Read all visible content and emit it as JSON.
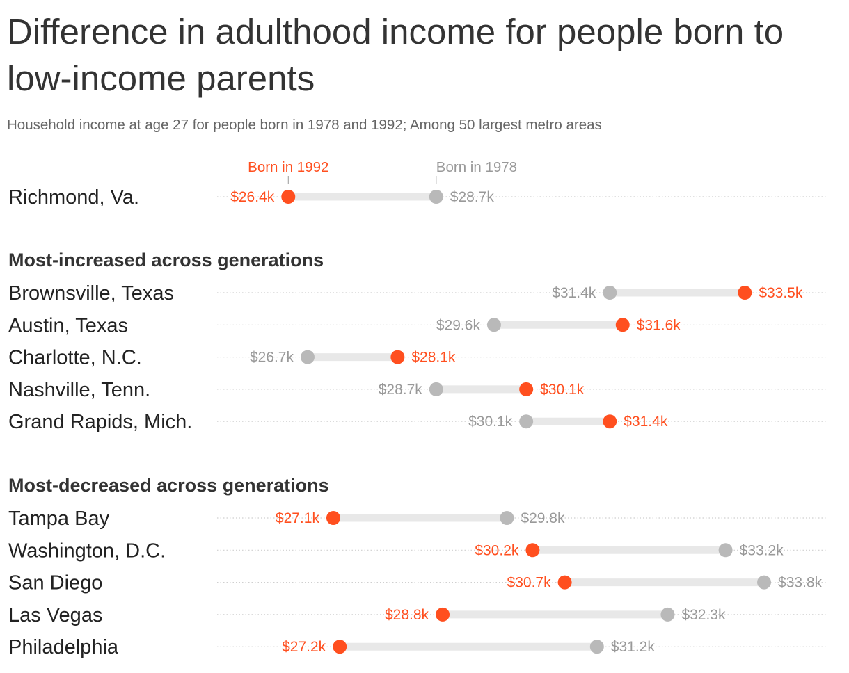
{
  "title": "Difference in adulthood income for people born to low-income parents",
  "subtitle": "Household income at age 27 for people born in 1978 and 1992; Among 50 largest metro areas",
  "colors": {
    "born_1992": "#ff4f1f",
    "born_1978": "#b9b9b9",
    "range_bar": "#e8e8e8",
    "dotted_line": "#cfcfcf"
  },
  "chart_data": {
    "type": "dumbbell",
    "units": "thousands of USD",
    "legend": {
      "born_1992": "Born in 1992",
      "born_1978": "Born in 1978"
    },
    "highlight": {
      "label": "Richmond, Va.",
      "y1978": 28.7,
      "y1992": 26.4,
      "l1978": "$28.7k",
      "l1992": "$26.4k"
    },
    "groups": [
      {
        "label": "Most-increased across generations",
        "rows": [
          {
            "label": "Brownsville, Texas",
            "y1978": 31.4,
            "y1992": 33.5,
            "l1978": "$31.4k",
            "l1992": "$33.5k"
          },
          {
            "label": "Austin, Texas",
            "y1978": 29.6,
            "y1992": 31.6,
            "l1978": "$29.6k",
            "l1992": "$31.6k"
          },
          {
            "label": "Charlotte, N.C.",
            "y1978": 26.7,
            "y1992": 28.1,
            "l1978": "$26.7k",
            "l1992": "$28.1k"
          },
          {
            "label": "Nashville, Tenn.",
            "y1978": 28.7,
            "y1992": 30.1,
            "l1978": "$28.7k",
            "l1992": "$30.1k"
          },
          {
            "label": "Grand Rapids, Mich.",
            "y1978": 30.1,
            "y1992": 31.4,
            "l1978": "$30.1k",
            "l1992": "$31.4k"
          }
        ]
      },
      {
        "label": "Most-decreased across generations",
        "rows": [
          {
            "label": "Tampa Bay",
            "y1978": 29.8,
            "y1992": 27.1,
            "l1978": "$29.8k",
            "l1992": "$27.1k"
          },
          {
            "label": "Washington, D.C.",
            "y1978": 33.2,
            "y1992": 30.2,
            "l1978": "$33.2k",
            "l1992": "$30.2k"
          },
          {
            "label": "San Diego",
            "y1978": 33.8,
            "y1992": 30.7,
            "l1978": "$33.8k",
            "l1992": "$30.7k"
          },
          {
            "label": "Las Vegas",
            "y1978": 32.3,
            "y1992": 28.8,
            "l1978": "$32.3k",
            "l1992": "$28.8k"
          },
          {
            "label": "Philadelphia",
            "y1978": 31.2,
            "y1992": 27.2,
            "l1978": "$31.2k",
            "l1992": "$27.2k"
          }
        ]
      }
    ]
  }
}
